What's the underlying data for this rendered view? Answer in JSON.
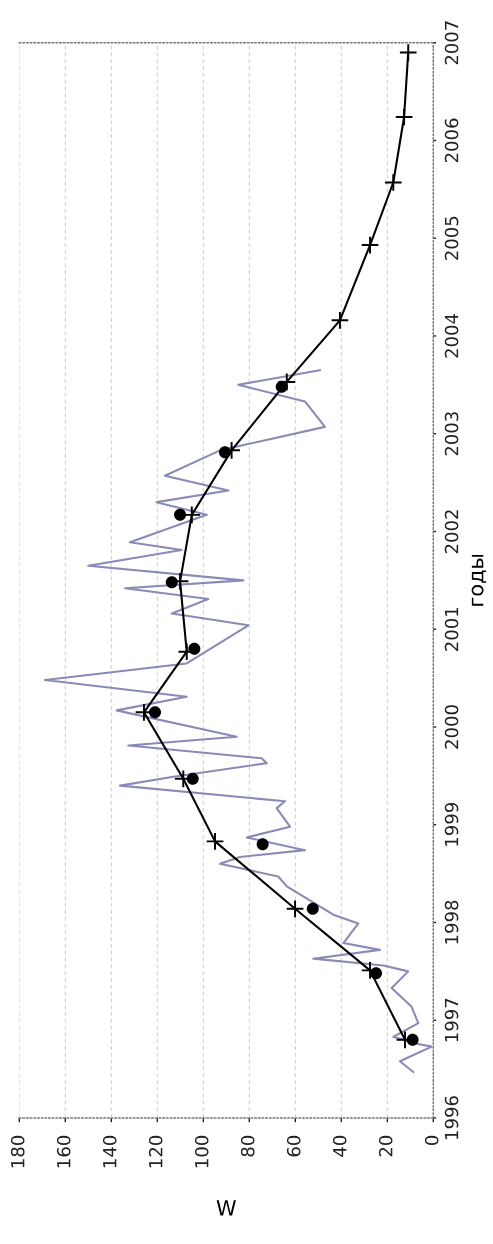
{
  "chart_data": {
    "type": "line",
    "xlabel": "W",
    "ylabel": "годы",
    "xlim": [
      180,
      0
    ],
    "ylim": [
      1996,
      2007
    ],
    "xticks": [
      0,
      20,
      40,
      60,
      80,
      100,
      120,
      140,
      160,
      180
    ],
    "yticks": [
      1996,
      1997,
      1998,
      1999,
      2000,
      2001,
      2002,
      2003,
      2004,
      2005,
      2006,
      2007
    ],
    "grid": "x",
    "series": [
      {
        "color": "#8a8ab8",
        "line_style": "solid",
        "x": [
          8.7,
          14.5,
          0.7,
          7.2,
          17.4,
          6.5,
          9.5,
          18.1,
          10.9,
          21.7,
          52.2,
          23.2,
          39.1,
          32.6,
          43.5,
          63.7,
          67.4,
          92.7,
          84.1,
          55.8,
          81.1,
          62.3,
          68.1,
          64.5,
          136.2,
          113.0,
          72.4,
          74.6,
          132.6,
          85.5,
          137.7,
          107.2,
          168.8,
          107.2,
          80.4,
          113.7,
          97.8,
          134.0,
          82.6,
          150.0,
          109.4,
          131.9,
          98.5,
          120.3,
          89.1,
          116.7,
          92.7,
          47.1,
          55.8,
          84.8,
          49.3
        ],
        "values": [
          1996.47,
          1996.58,
          1996.73,
          1996.76,
          1996.83,
          1996.97,
          1997.14,
          1997.33,
          1997.5,
          1997.56,
          1997.63,
          1997.72,
          1997.79,
          1997.99,
          1998.08,
          1998.37,
          1998.47,
          1998.6,
          1998.67,
          1998.74,
          1998.87,
          1998.98,
          1999.17,
          1999.24,
          1999.4,
          1999.49,
          1999.63,
          1999.68,
          1999.81,
          1999.9,
          2000.17,
          2000.31,
          2000.48,
          2000.65,
          2001.04,
          2001.16,
          2001.31,
          2001.42,
          2001.5,
          2001.65,
          2001.81,
          2001.89,
          2002.17,
          2002.3,
          2002.42,
          2002.57,
          2002.83,
          2003.07,
          2003.33,
          2003.5,
          2003.65
        ]
      },
      {
        "color": "#000000",
        "line_style": "solid",
        "marker": "cross",
        "x": [
          12.3,
          27.5,
          60.1,
          94.9,
          108.7,
          125.8,
          107.2,
          110.1,
          105.0,
          87.7,
          63.7,
          40.6,
          27.5,
          17.4,
          12.7,
          10.9
        ],
        "values": [
          1996.8,
          1997.51,
          1998.14,
          1998.83,
          1999.47,
          2000.15,
          2000.77,
          2001.49,
          2002.17,
          2002.83,
          2003.53,
          2004.16,
          2004.93,
          2005.57,
          2006.24,
          2006.9
        ]
      },
      {
        "type": "scatter",
        "color": "#000000",
        "marker": "circle",
        "x": [
          9.0,
          24.9,
          52.4,
          74.2,
          104.6,
          121.0,
          103.9,
          113.7,
          110.1,
          90.6,
          65.9
        ],
        "values": [
          1996.8,
          1997.48,
          1998.14,
          1998.8,
          1999.47,
          2000.15,
          2000.8,
          2001.48,
          2002.17,
          2002.81,
          2003.48
        ]
      }
    ]
  }
}
